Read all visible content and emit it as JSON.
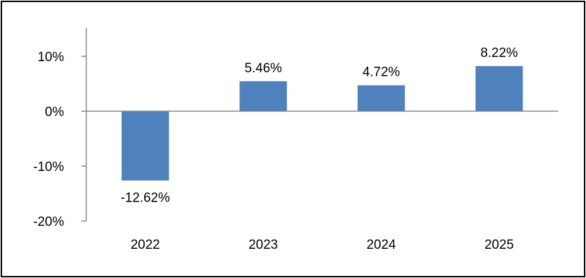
{
  "chart_data": {
    "type": "bar",
    "categories": [
      "2022",
      "2023",
      "2024",
      "2025"
    ],
    "values": [
      -12.62,
      5.46,
      4.72,
      8.22
    ],
    "data_labels": [
      "-12.62%",
      "5.46%",
      "4.72%",
      "8.22%"
    ],
    "ylim": [
      -20,
      10
    ],
    "yticks": [
      10,
      0,
      -10,
      -20
    ],
    "ytick_labels": [
      "10%",
      "0%",
      "-10%",
      "-20%"
    ],
    "grid": false,
    "legend": "none",
    "bar_color": "#4F81BD"
  }
}
